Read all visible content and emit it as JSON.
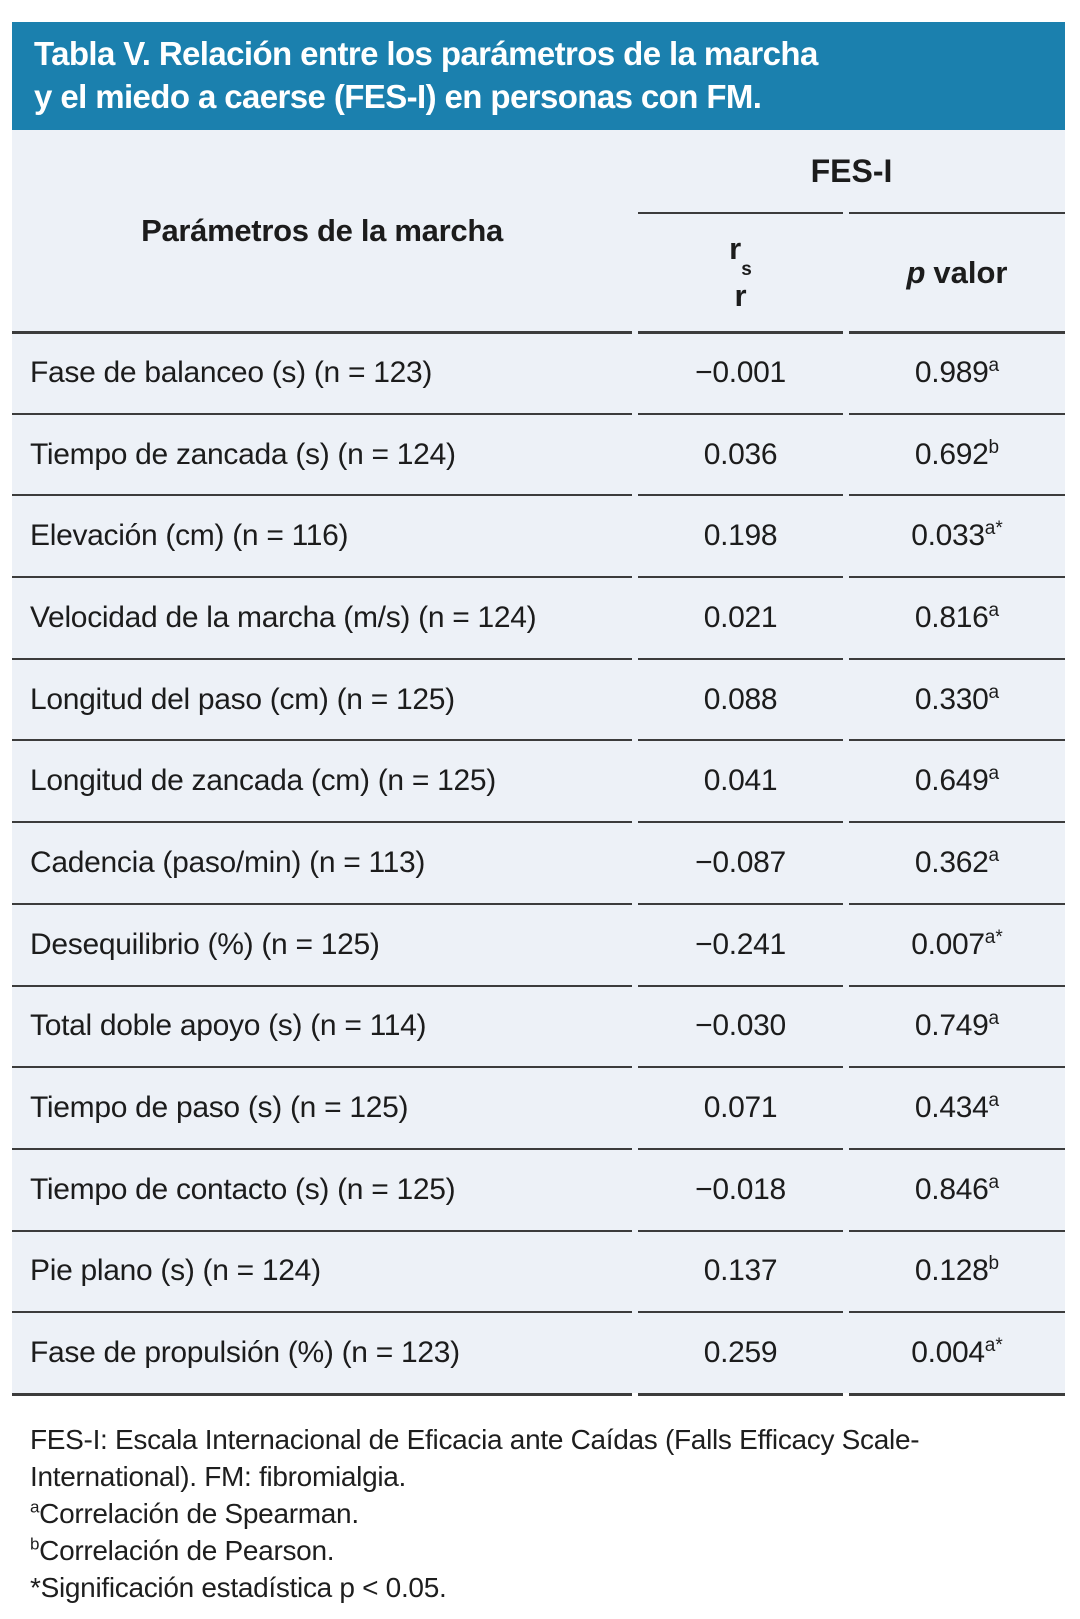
{
  "title": {
    "lines": [
      "Tabla V. Relación entre los parámetros de la marcha",
      "y el miedo a caerse (FES-I) en personas con FM."
    ]
  },
  "colors": {
    "header_bg": "#1b80ae",
    "table_bg": "#edf1f7",
    "body_text": "#1c1c1c",
    "rule": "#3c3c3c",
    "title_text": "#ffffff"
  },
  "table": {
    "param_header": "Parámetros de la marcha",
    "group_header": "FES-I",
    "r_header": {
      "main": "r",
      "sub": "s",
      "second": "r"
    },
    "p_header": {
      "italic": "p",
      "rest": "valor"
    },
    "rows": [
      {
        "param": "Fase de balanceo (s) (n = 123)",
        "r": "−0.001",
        "p": "0.989",
        "p_sup": "a"
      },
      {
        "param": "Tiempo de zancada (s) (n = 124)",
        "r": "0.036",
        "p": "0.692",
        "p_sup": "b"
      },
      {
        "param": "Elevación (cm) (n = 116)",
        "r": "0.198",
        "p": "0.033",
        "p_sup": "a*"
      },
      {
        "param": "Velocidad de la marcha (m/s) (n = 124)",
        "r": "0.021",
        "p": "0.816",
        "p_sup": "a"
      },
      {
        "param": "Longitud del paso (cm) (n = 125)",
        "r": "0.088",
        "p": "0.330",
        "p_sup": "a"
      },
      {
        "param": "Longitud de zancada (cm) (n = 125)",
        "r": "0.041",
        "p": "0.649",
        "p_sup": "a"
      },
      {
        "param": "Cadencia (paso/min) (n = 113)",
        "r": "−0.087",
        "p": "0.362",
        "p_sup": "a"
      },
      {
        "param": "Desequilibrio (%) (n = 125)",
        "r": "−0.241",
        "p": "0.007",
        "p_sup": "a*"
      },
      {
        "param": "Total doble apoyo (s) (n = 114)",
        "r": "−0.030",
        "p": "0.749",
        "p_sup": "a"
      },
      {
        "param": "Tiempo de paso (s) (n = 125)",
        "r": "0.071",
        "p": "0.434",
        "p_sup": "a"
      },
      {
        "param": "Tiempo de contacto (s) (n = 125)",
        "r": "−0.018",
        "p": "0.846",
        "p_sup": "a"
      },
      {
        "param": "Pie plano (s) (n = 124)",
        "r": "0.137",
        "p": "0.128",
        "p_sup": "b"
      },
      {
        "param": "Fase de propulsión (%) (n = 123)",
        "r": "0.259",
        "p": "0.004",
        "p_sup": "a*"
      }
    ]
  },
  "footnotes": [
    {
      "sup": "",
      "text": "FES-I: Escala Internacional de Eficacia ante Caídas (Falls Efficacy Scale-International). FM: fibromialgia."
    },
    {
      "sup": "a",
      "text": "Correlación de Spearman."
    },
    {
      "sup": "b",
      "text": "Correlación de Pearson."
    },
    {
      "sup": "",
      "text": "*Significación estadística p < 0.05."
    }
  ]
}
